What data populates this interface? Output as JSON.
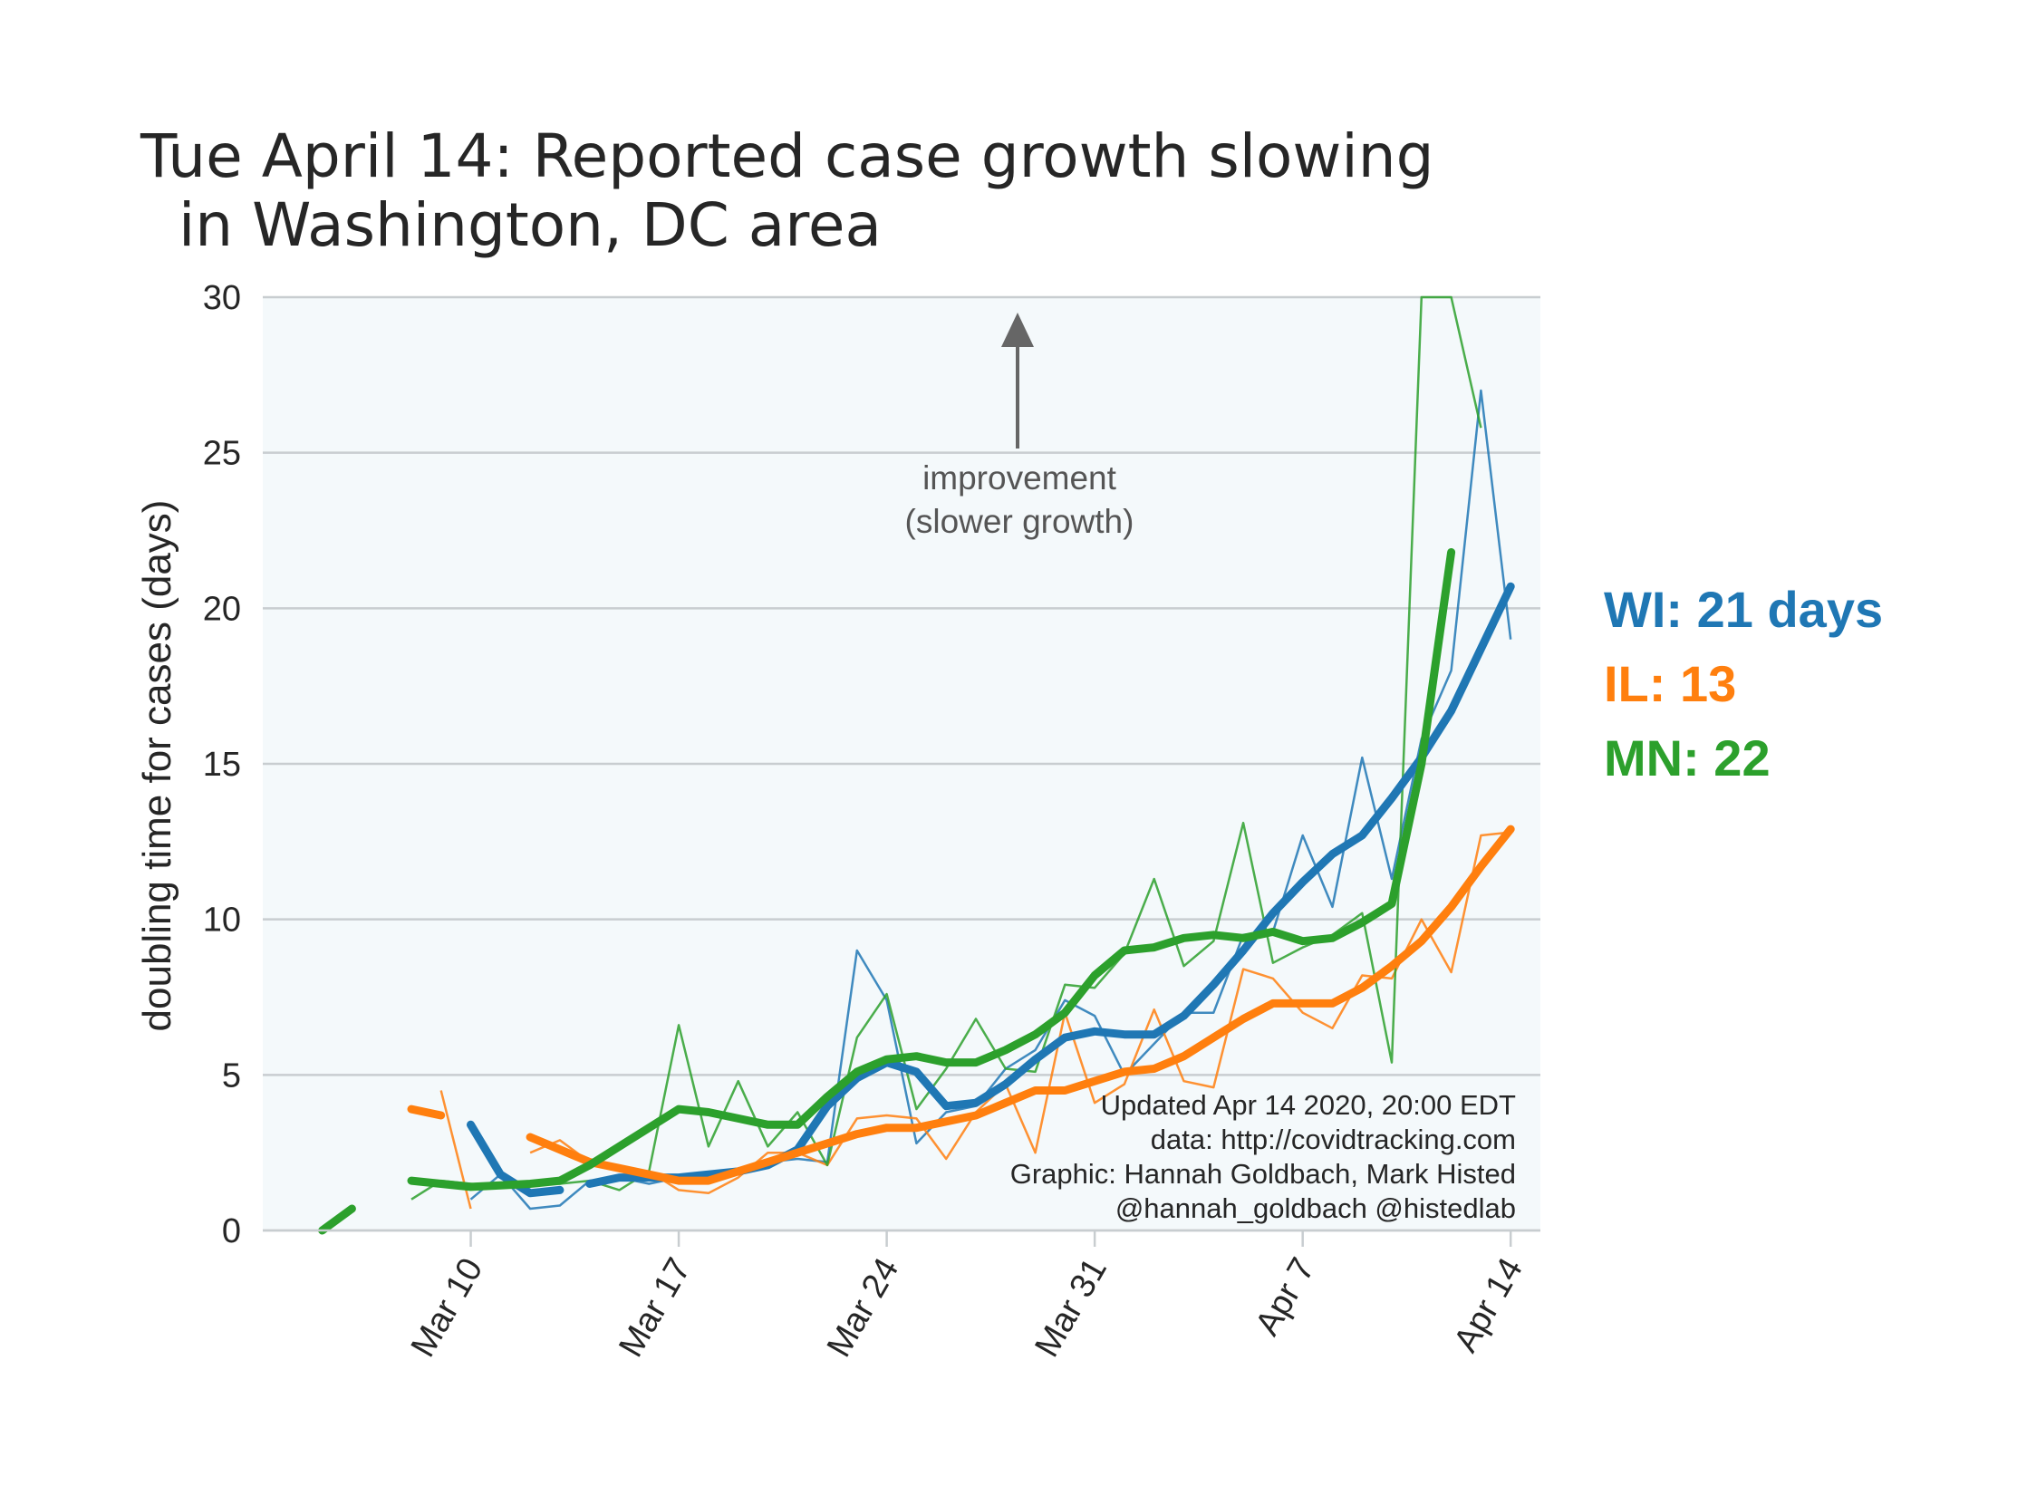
{
  "chart_data": {
    "type": "line",
    "title": "Tue April 14: Reported case growth slowing\n  in Washington, DC area",
    "ylabel": "doubling time for cases (days)",
    "xlabel": "",
    "ylim": [
      0,
      30
    ],
    "xlim": [
      "2020-03-03",
      "2020-04-15"
    ],
    "yticks": [
      0,
      5,
      10,
      15,
      20,
      25,
      30
    ],
    "xticks": [
      {
        "date": "2020-03-10",
        "label": "Mar 10"
      },
      {
        "date": "2020-03-17",
        "label": "Mar 17"
      },
      {
        "date": "2020-03-24",
        "label": "Mar 24"
      },
      {
        "date": "2020-03-31",
        "label": "Mar 31"
      },
      {
        "date": "2020-04-07",
        "label": "Apr 7"
      },
      {
        "date": "2020-04-14",
        "label": "Apr 14"
      }
    ],
    "grid": "horizontal",
    "series": [
      {
        "name": "WI",
        "color": "#1f77b4",
        "raw": [
          [
            "2020-03-10",
            1.0
          ],
          [
            "2020-03-11",
            1.8
          ],
          [
            "2020-03-12",
            0.7
          ],
          [
            "2020-03-13",
            0.8
          ],
          [
            "2020-03-14",
            1.6
          ],
          [
            "2020-03-15",
            1.7
          ],
          [
            "2020-03-16",
            1.5
          ],
          [
            "2020-03-17",
            1.7
          ],
          [
            "2020-03-18",
            1.7
          ],
          [
            "2020-03-19",
            1.9
          ],
          [
            "2020-03-20",
            2.2
          ],
          [
            "2020-03-21",
            2.3
          ],
          [
            "2020-03-22",
            2.2
          ],
          [
            "2020-03-23",
            9.0
          ],
          [
            "2020-03-24",
            7.4
          ],
          [
            "2020-03-25",
            2.8
          ],
          [
            "2020-03-26",
            3.8
          ],
          [
            "2020-03-27",
            4.0
          ],
          [
            "2020-03-28",
            5.2
          ],
          [
            "2020-03-29",
            5.8
          ],
          [
            "2020-03-30",
            7.4
          ],
          [
            "2020-03-31",
            6.9
          ],
          [
            "2020-04-01",
            5.0
          ],
          [
            "2020-04-02",
            6.0
          ],
          [
            "2020-04-03",
            7.0
          ],
          [
            "2020-04-04",
            7.0
          ],
          [
            "2020-04-05",
            9.5
          ],
          [
            "2020-04-06",
            9.6
          ],
          [
            "2020-04-07",
            12.7
          ],
          [
            "2020-04-08",
            10.4
          ],
          [
            "2020-04-09",
            15.2
          ],
          [
            "2020-04-10",
            11.3
          ],
          [
            "2020-04-11",
            15.8
          ],
          [
            "2020-04-12",
            18.0
          ],
          [
            "2020-04-13",
            27.0
          ],
          [
            "2020-04-14",
            19.0
          ]
        ],
        "smoothed": [
          [
            [
              "2020-03-10",
              3.4
            ],
            [
              "2020-03-11",
              1.8
            ],
            [
              "2020-03-12",
              1.2
            ],
            [
              "2020-03-13",
              1.3
            ]
          ],
          [
            [
              "2020-03-14",
              1.5
            ],
            [
              "2020-03-15",
              1.7
            ],
            [
              "2020-03-16",
              1.7
            ],
            [
              "2020-03-17",
              1.7
            ],
            [
              "2020-03-18",
              1.8
            ],
            [
              "2020-03-19",
              1.9
            ],
            [
              "2020-03-20",
              2.1
            ],
            [
              "2020-03-21",
              2.6
            ],
            [
              "2020-03-22",
              4.0
            ],
            [
              "2020-03-23",
              4.9
            ],
            [
              "2020-03-24",
              5.4
            ],
            [
              "2020-03-25",
              5.1
            ],
            [
              "2020-03-26",
              4.0
            ],
            [
              "2020-03-27",
              4.1
            ],
            [
              "2020-03-28",
              4.7
            ],
            [
              "2020-03-29",
              5.5
            ],
            [
              "2020-03-30",
              6.2
            ],
            [
              "2020-03-31",
              6.4
            ],
            [
              "2020-04-01",
              6.3
            ],
            [
              "2020-04-02",
              6.3
            ],
            [
              "2020-04-03",
              6.9
            ],
            [
              "2020-04-04",
              7.9
            ],
            [
              "2020-04-05",
              9.0
            ],
            [
              "2020-04-06",
              10.2
            ],
            [
              "2020-04-07",
              11.2
            ],
            [
              "2020-04-08",
              12.1
            ],
            [
              "2020-04-09",
              12.7
            ],
            [
              "2020-04-10",
              13.9
            ],
            [
              "2020-04-11",
              15.2
            ],
            [
              "2020-04-12",
              16.7
            ],
            [
              "2020-04-13",
              18.7
            ],
            [
              "2020-04-14",
              20.7
            ]
          ]
        ]
      },
      {
        "name": "IL",
        "color": "#ff7f0e",
        "raw": [
          [
            "2020-03-09",
            4.5
          ],
          [
            "2020-03-10",
            0.7
          ],
          [
            "2020-03-11",
            null
          ],
          [
            "2020-03-12",
            2.5
          ],
          [
            "2020-03-13",
            2.9
          ],
          [
            "2020-03-14",
            2.2
          ],
          [
            "2020-03-15",
            2.0
          ],
          [
            "2020-03-16",
            1.9
          ],
          [
            "2020-03-17",
            1.3
          ],
          [
            "2020-03-18",
            1.2
          ],
          [
            "2020-03-19",
            1.7
          ],
          [
            "2020-03-20",
            2.5
          ],
          [
            "2020-03-21",
            2.5
          ],
          [
            "2020-03-22",
            2.1
          ],
          [
            "2020-03-23",
            3.6
          ],
          [
            "2020-03-24",
            3.7
          ],
          [
            "2020-03-25",
            3.6
          ],
          [
            "2020-03-26",
            2.3
          ],
          [
            "2020-03-27",
            3.8
          ],
          [
            "2020-03-28",
            4.7
          ],
          [
            "2020-03-29",
            2.5
          ],
          [
            "2020-03-30",
            7.0
          ],
          [
            "2020-03-31",
            4.1
          ],
          [
            "2020-04-01",
            4.7
          ],
          [
            "2020-04-02",
            7.1
          ],
          [
            "2020-04-03",
            4.8
          ],
          [
            "2020-04-04",
            4.6
          ],
          [
            "2020-04-05",
            8.4
          ],
          [
            "2020-04-06",
            8.1
          ],
          [
            "2020-04-07",
            7.0
          ],
          [
            "2020-04-08",
            6.5
          ],
          [
            "2020-04-09",
            8.2
          ],
          [
            "2020-04-10",
            8.1
          ],
          [
            "2020-04-11",
            10.0
          ],
          [
            "2020-04-12",
            8.3
          ],
          [
            "2020-04-13",
            12.7
          ],
          [
            "2020-04-14",
            12.8
          ]
        ],
        "smoothed": [
          [
            [
              "2020-03-08",
              3.9
            ],
            [
              "2020-03-09",
              3.7
            ]
          ],
          [
            [
              "2020-03-12",
              3.0
            ],
            [
              "2020-03-13",
              2.6
            ],
            [
              "2020-03-14",
              2.2
            ],
            [
              "2020-03-15",
              2.0
            ],
            [
              "2020-03-16",
              1.8
            ],
            [
              "2020-03-17",
              1.6
            ],
            [
              "2020-03-18",
              1.6
            ],
            [
              "2020-03-19",
              1.9
            ],
            [
              "2020-03-20",
              2.2
            ],
            [
              "2020-03-21",
              2.5
            ],
            [
              "2020-03-22",
              2.8
            ],
            [
              "2020-03-23",
              3.1
            ],
            [
              "2020-03-24",
              3.3
            ],
            [
              "2020-03-25",
              3.3
            ],
            [
              "2020-03-26",
              3.5
            ],
            [
              "2020-03-27",
              3.7
            ],
            [
              "2020-03-28",
              4.1
            ],
            [
              "2020-03-29",
              4.5
            ],
            [
              "2020-03-30",
              4.5
            ],
            [
              "2020-03-31",
              4.8
            ],
            [
              "2020-04-01",
              5.1
            ],
            [
              "2020-04-02",
              5.2
            ],
            [
              "2020-04-03",
              5.6
            ],
            [
              "2020-04-04",
              6.2
            ],
            [
              "2020-04-05",
              6.8
            ],
            [
              "2020-04-06",
              7.3
            ],
            [
              "2020-04-07",
              7.3
            ],
            [
              "2020-04-08",
              7.3
            ],
            [
              "2020-04-09",
              7.8
            ],
            [
              "2020-04-10",
              8.5
            ],
            [
              "2020-04-11",
              9.3
            ],
            [
              "2020-04-12",
              10.4
            ],
            [
              "2020-04-13",
              11.7
            ],
            [
              "2020-04-14",
              12.9
            ]
          ]
        ]
      },
      {
        "name": "MN",
        "color": "#2ca02c",
        "raw": [
          [
            "2020-03-08",
            1.0
          ],
          [
            "2020-03-09",
            1.6
          ],
          [
            "2020-03-10",
            1.5
          ],
          [
            "2020-03-11",
            1.4
          ],
          [
            "2020-03-12",
            1.5
          ],
          [
            "2020-03-13",
            1.5
          ],
          [
            "2020-03-14",
            1.6
          ],
          [
            "2020-03-15",
            1.3
          ],
          [
            "2020-03-16",
            1.9
          ],
          [
            "2020-03-17",
            6.6
          ],
          [
            "2020-03-18",
            2.7
          ],
          [
            "2020-03-19",
            4.8
          ],
          [
            "2020-03-20",
            2.7
          ],
          [
            "2020-03-21",
            3.8
          ],
          [
            "2020-03-22",
            2.1
          ],
          [
            "2020-03-23",
            6.2
          ],
          [
            "2020-03-24",
            7.6
          ],
          [
            "2020-03-25",
            3.9
          ],
          [
            "2020-03-26",
            5.2
          ],
          [
            "2020-03-27",
            6.8
          ],
          [
            "2020-03-28",
            5.2
          ],
          [
            "2020-03-29",
            5.1
          ],
          [
            "2020-03-30",
            7.9
          ],
          [
            "2020-03-31",
            7.8
          ],
          [
            "2020-04-01",
            8.9
          ],
          [
            "2020-04-02",
            11.3
          ],
          [
            "2020-04-03",
            8.5
          ],
          [
            "2020-04-04",
            9.3
          ],
          [
            "2020-04-05",
            13.1
          ],
          [
            "2020-04-06",
            8.6
          ],
          [
            "2020-04-07",
            9.1
          ],
          [
            "2020-04-08",
            9.5
          ],
          [
            "2020-04-09",
            10.2
          ],
          [
            "2020-04-10",
            5.4
          ],
          [
            "2020-04-11",
            30.0
          ],
          [
            "2020-04-12",
            30.0
          ],
          [
            "2020-04-13",
            25.8
          ]
        ],
        "smoothed": [
          [
            [
              "2020-03-05",
              0.0
            ],
            [
              "2020-03-06",
              0.7
            ]
          ],
          [
            [
              "2020-03-08",
              1.6
            ],
            [
              "2020-03-09",
              1.5
            ],
            [
              "2020-03-10",
              1.4
            ],
            [
              "2020-03-11",
              1.45
            ],
            [
              "2020-03-12",
              1.5
            ],
            [
              "2020-03-13",
              1.6
            ],
            [
              "2020-03-14",
              2.1
            ],
            [
              "2020-03-15",
              2.7
            ],
            [
              "2020-03-16",
              3.3
            ],
            [
              "2020-03-17",
              3.9
            ],
            [
              "2020-03-18",
              3.8
            ],
            [
              "2020-03-19",
              3.6
            ],
            [
              "2020-03-20",
              3.4
            ],
            [
              "2020-03-21",
              3.4
            ],
            [
              "2020-03-22",
              4.3
            ],
            [
              "2020-03-23",
              5.1
            ],
            [
              "2020-03-24",
              5.5
            ],
            [
              "2020-03-25",
              5.6
            ],
            [
              "2020-03-26",
              5.4
            ],
            [
              "2020-03-27",
              5.4
            ],
            [
              "2020-03-28",
              5.8
            ],
            [
              "2020-03-29",
              6.3
            ],
            [
              "2020-03-30",
              7.0
            ],
            [
              "2020-03-31",
              8.2
            ],
            [
              "2020-04-01",
              9.0
            ],
            [
              "2020-04-02",
              9.1
            ],
            [
              "2020-04-03",
              9.4
            ],
            [
              "2020-04-04",
              9.5
            ],
            [
              "2020-04-05",
              9.4
            ],
            [
              "2020-04-06",
              9.6
            ],
            [
              "2020-04-07",
              9.3
            ],
            [
              "2020-04-08",
              9.4
            ],
            [
              "2020-04-09",
              9.9
            ],
            [
              "2020-04-10",
              10.5
            ],
            [
              "2020-04-11",
              15.0
            ],
            [
              "2020-04-12",
              21.8
            ]
          ]
        ]
      }
    ],
    "annotation": {
      "text_line1": "improvement",
      "text_line2": "(slower growth)",
      "arrow_direction": "up"
    },
    "credits": [
      "Updated Apr 14 2020, 20:00 EDT",
      "data: http://covidtracking.com",
      "Graphic: Hannah Goldbach, Mark Histed",
      "@hannah_goldbach @histedlab"
    ],
    "legend": {
      "placement": "right",
      "entries": [
        {
          "text": "WI: 21 days",
          "color": "#1f77b4"
        },
        {
          "text": "IL: 13",
          "color": "#ff7f0e"
        },
        {
          "text": "MN: 22",
          "color": "#2ca02c"
        }
      ]
    },
    "colors": {
      "plot_background": "#f4f9fb",
      "grid": "#c8cdd0",
      "text": "#262626",
      "annotation": "#666666"
    }
  }
}
